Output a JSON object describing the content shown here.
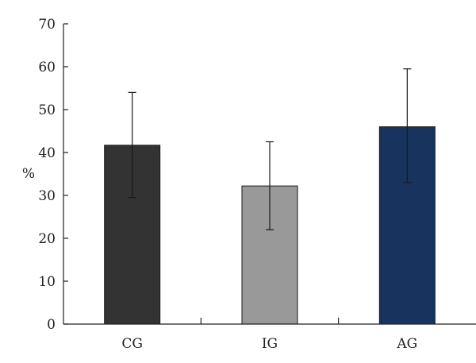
{
  "chart_data": {
    "type": "bar",
    "title": "",
    "xlabel": "",
    "ylabel": "%",
    "ylim": [
      0,
      70
    ],
    "yticks": [
      0,
      10,
      20,
      30,
      40,
      50,
      60,
      70
    ],
    "grid": false,
    "legend": "none",
    "categories": [
      "CG",
      "IG",
      "AG"
    ],
    "values": [
      41.7,
      32.2,
      46.0
    ],
    "error_low": [
      29.5,
      22.0,
      33.0
    ],
    "error_high": [
      54.0,
      42.5,
      59.5
    ],
    "colors": [
      "#333333",
      "#999999",
      "#19335f"
    ]
  }
}
